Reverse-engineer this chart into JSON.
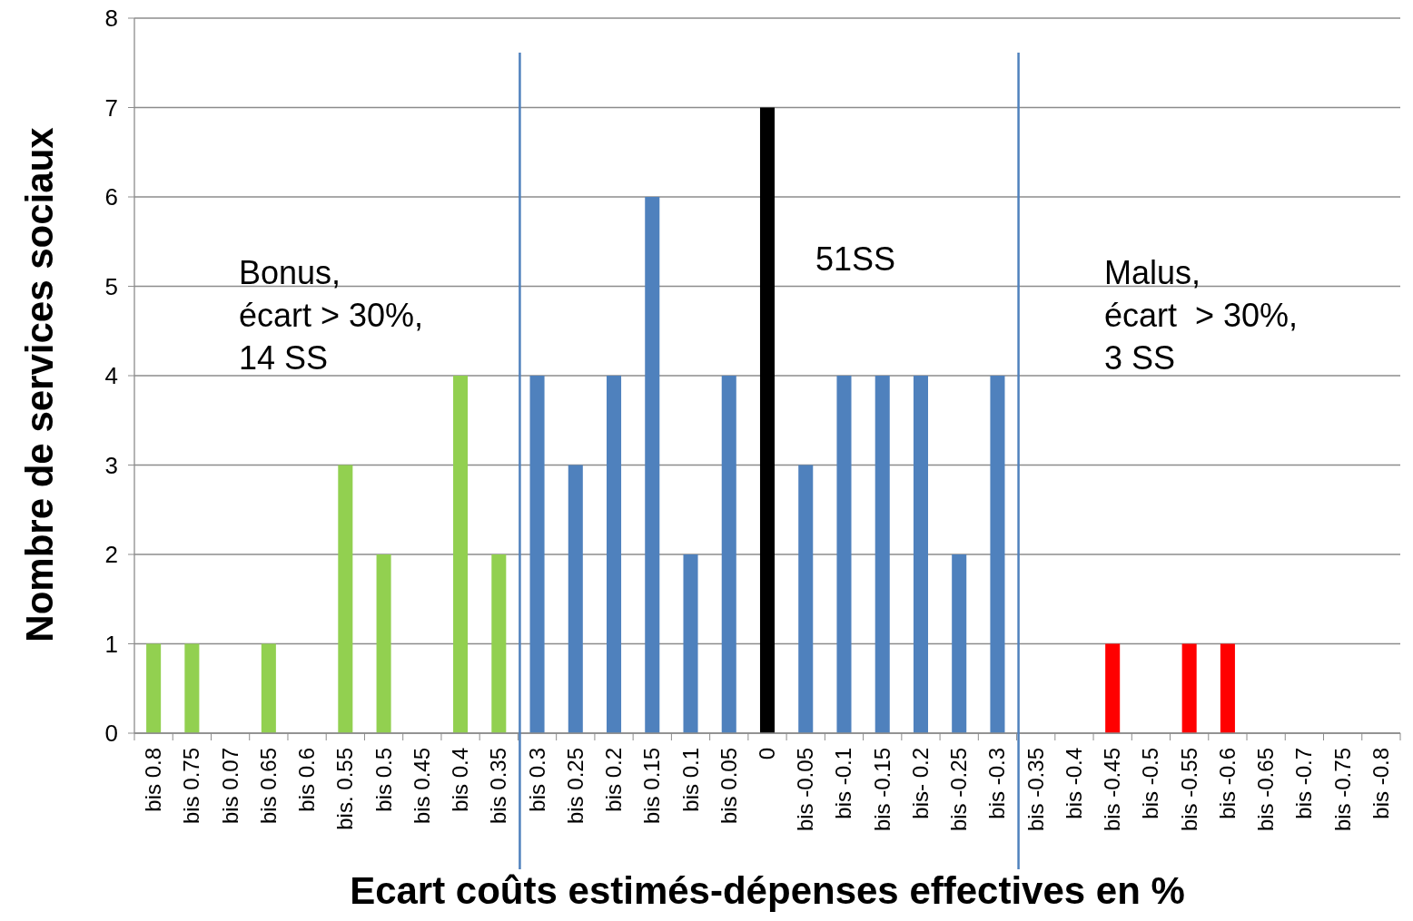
{
  "chart_data": {
    "type": "bar",
    "xlabel": "Ecart coûts estimés-dépenses effectives en %",
    "ylabel": "Nombre de services sociaux",
    "categories": [
      "bis 0.8",
      "bis 0.75",
      "bis 0.07",
      "bis 0.65",
      "bis 0.6",
      "bis. 0.55",
      "bis 0.5",
      "bis 0.45",
      "bis 0.4",
      "bis 0.35",
      "bis 0.3",
      "bis 0.25",
      "bis 0.2",
      "bis 0.15",
      "bis 0.1",
      "bis 0.05",
      "0",
      "bis -0.05",
      "bis -0.1",
      "bis -0.15",
      "bis- 0.2",
      "bis -0.25",
      "bis -0.3",
      "bis -0.35",
      "bis -0.4",
      "bis -0.45",
      "bis -0.5",
      "bis -0.55",
      "bis -0.6",
      "bis -0.65",
      "bis -0.7",
      "bis -0.75",
      "bis -0.8"
    ],
    "values": [
      1,
      1,
      0,
      1,
      0,
      3,
      2,
      0,
      4,
      2,
      4,
      3,
      4,
      6,
      2,
      4,
      7,
      3,
      4,
      4,
      4,
      2,
      4,
      0,
      0,
      1,
      0,
      1,
      1,
      0,
      0,
      0,
      0
    ],
    "colors": [
      "#92d050",
      "#92d050",
      "#92d050",
      "#92d050",
      "#92d050",
      "#92d050",
      "#92d050",
      "#92d050",
      "#92d050",
      "#92d050",
      "#4f81bd",
      "#4f81bd",
      "#4f81bd",
      "#4f81bd",
      "#4f81bd",
      "#4f81bd",
      "#000000",
      "#4f81bd",
      "#4f81bd",
      "#4f81bd",
      "#4f81bd",
      "#4f81bd",
      "#4f81bd",
      "#ff0000",
      "#ff0000",
      "#ff0000",
      "#ff0000",
      "#ff0000",
      "#ff0000",
      "#ff0000",
      "#ff0000",
      "#ff0000",
      "#ff0000"
    ],
    "ylim": [
      0,
      8
    ],
    "yticks": [
      0,
      1,
      2,
      3,
      4,
      5,
      6,
      7,
      8
    ],
    "grid": "y",
    "annotations": [
      "Bonus,\nécart > 30%,\n14 SS",
      "51SS",
      "Malus,\nécart  > 30%,\n3 SS"
    ]
  }
}
